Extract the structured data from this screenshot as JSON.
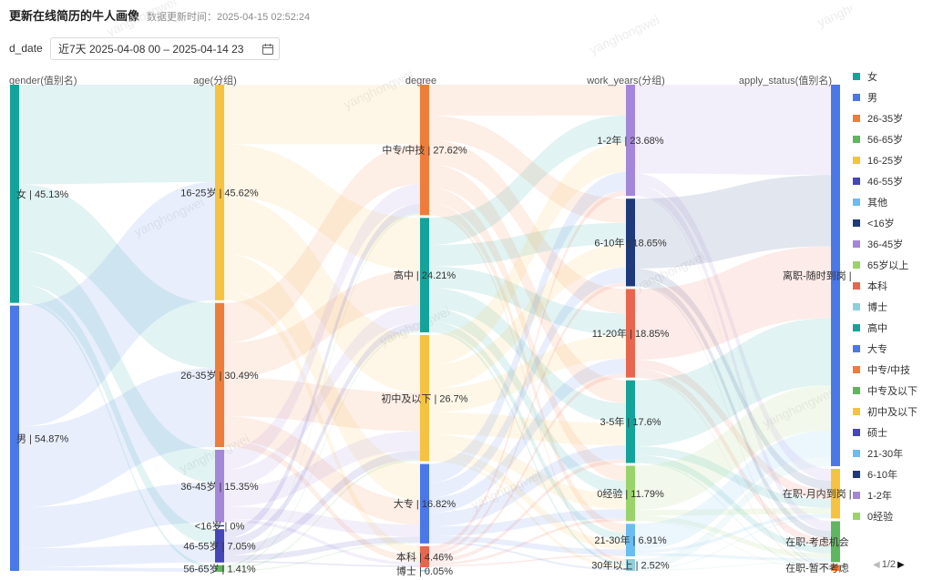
{
  "header": {
    "title": "更新在线简历的牛人画像",
    "updated_label": "数据更新时间：",
    "updated_time": "2025-04-15 02:52:24"
  },
  "filter": {
    "label": "d_date",
    "value": "近7天 2025-04-08 00 – 2025-04-14 23",
    "icon": "calendar-icon"
  },
  "watermark": "yanghongwei",
  "chart_data": {
    "type": "sankey",
    "columns": [
      {
        "key": "gender",
        "label": "gender(值别名)",
        "nodes": [
          {
            "name": "女",
            "pct": 45.13,
            "color": "#14a39a"
          },
          {
            "name": "男",
            "pct": 54.87,
            "color": "#4a78e8"
          }
        ]
      },
      {
        "key": "age",
        "label": "age(分组)",
        "nodes": [
          {
            "name": "16-25岁",
            "pct": 45.62,
            "color": "#f5c242"
          },
          {
            "name": "26-35岁",
            "pct": 30.49,
            "color": "#ee7d3b"
          },
          {
            "name": "36-45岁",
            "pct": 15.35,
            "color": "#a487d8"
          },
          {
            "name": "<16岁",
            "pct": 0,
            "color": "#1f3a7a"
          },
          {
            "name": "46-55岁",
            "pct": 7.05,
            "color": "#4646b8"
          },
          {
            "name": "56-65岁",
            "pct": 1.41,
            "color": "#5fb65f"
          }
        ]
      },
      {
        "key": "degree",
        "label": "degree",
        "nodes": [
          {
            "name": "中专/中技",
            "pct": 27.62,
            "color": "#ee7d3b"
          },
          {
            "name": "高中",
            "pct": 24.21,
            "color": "#14a39a"
          },
          {
            "name": "初中及以下",
            "pct": 26.7,
            "color": "#f5c242"
          },
          {
            "name": "大专",
            "pct": 16.82,
            "color": "#4a78e8"
          },
          {
            "name": "本科",
            "pct": 4.46,
            "color": "#e8664f"
          },
          {
            "name": "博士",
            "pct": 0.05,
            "color": "#8fcfdc"
          }
        ]
      },
      {
        "key": "work_years",
        "label": "work_years(分组)",
        "nodes": [
          {
            "name": "1-2年",
            "pct": 23.68,
            "color": "#a487d8"
          },
          {
            "name": "6-10年",
            "pct": 18.65,
            "color": "#1f3a7a"
          },
          {
            "name": "11-20年",
            "pct": 18.85,
            "color": "#e8664f"
          },
          {
            "name": "3-5年",
            "pct": 17.6,
            "color": "#14a39a"
          },
          {
            "name": "0经验",
            "pct": 11.79,
            "color": "#9bd36b"
          },
          {
            "name": "21-30年",
            "pct": 6.91,
            "color": "#6bbcf0"
          },
          {
            "name": "30年以上",
            "pct": 2.52,
            "color": "#8fcfdc"
          }
        ]
      },
      {
        "key": "apply_status",
        "label": "apply_status(值别名)",
        "nodes": [
          {
            "name": "离职-随时到岗",
            "pct": 79.81,
            "color": "#4a78e8"
          },
          {
            "name": "在职-月内到岗",
            "pct": 10.37,
            "color": "#f5c242"
          },
          {
            "name": "在职-考虑机会",
            "pct": 8.57,
            "color": "#5fb65f"
          },
          {
            "name": "在职-暂不考虑",
            "pct": 1.26,
            "color": "#ee7d3b"
          }
        ]
      }
    ]
  },
  "legend": {
    "items": [
      {
        "label": "女",
        "color": "#14a39a"
      },
      {
        "label": "男",
        "color": "#4a78e8"
      },
      {
        "label": "26-35岁",
        "color": "#ee7d3b"
      },
      {
        "label": "56-65岁",
        "color": "#5fb65f"
      },
      {
        "label": "16-25岁",
        "color": "#f5c242"
      },
      {
        "label": "46-55岁",
        "color": "#4646b8"
      },
      {
        "label": "其他",
        "color": "#6bbcf0"
      },
      {
        "label": "<16岁",
        "color": "#1f3a7a"
      },
      {
        "label": "36-45岁",
        "color": "#a487d8"
      },
      {
        "label": "65岁以上",
        "color": "#9bd36b"
      },
      {
        "label": "本科",
        "color": "#e8664f"
      },
      {
        "label": "博士",
        "color": "#8fcfdc"
      },
      {
        "label": "高中",
        "color": "#14a39a"
      },
      {
        "label": "大专",
        "color": "#4a78e8"
      },
      {
        "label": "中专/中技",
        "color": "#ee7d3b"
      },
      {
        "label": "中专及以下",
        "color": "#5fb65f"
      },
      {
        "label": "初中及以下",
        "color": "#f5c242"
      },
      {
        "label": "硕士",
        "color": "#4646b8"
      },
      {
        "label": "21-30年",
        "color": "#6bbcf0"
      },
      {
        "label": "6-10年",
        "color": "#1f3a7a"
      },
      {
        "label": "1-2年",
        "color": "#a487d8"
      },
      {
        "label": "0经验",
        "color": "#9bd36b"
      }
    ],
    "pager": {
      "text": "1/2"
    }
  }
}
